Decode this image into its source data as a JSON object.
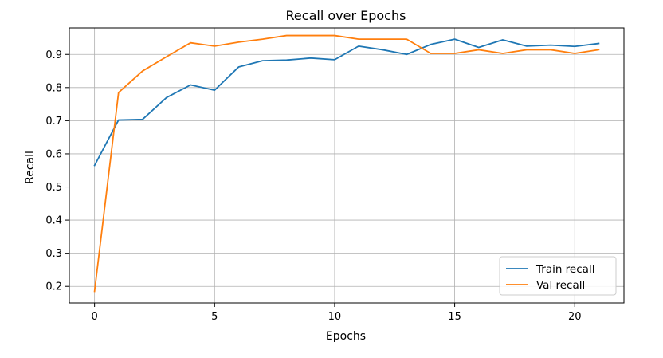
{
  "chart_data": {
    "type": "line",
    "title": "Recall over Epochs",
    "xlabel": "Epochs",
    "ylabel": "Recall",
    "xlim": [
      -1.05,
      22.05
    ],
    "ylim": [
      0.15,
      0.98
    ],
    "xticks": [
      0,
      5,
      10,
      15,
      20
    ],
    "yticks": [
      0.2,
      0.3,
      0.4,
      0.5,
      0.6,
      0.7,
      0.8,
      0.9
    ],
    "grid": true,
    "legend_position": "lower-right",
    "x": [
      0,
      1,
      2,
      3,
      4,
      5,
      6,
      7,
      8,
      9,
      10,
      11,
      12,
      13,
      14,
      15,
      16,
      17,
      18,
      19,
      20,
      21
    ],
    "series": [
      {
        "name": "Train recall",
        "color": "#1f77b4",
        "values": [
          0.565,
          0.702,
          0.704,
          0.77,
          0.808,
          0.792,
          0.862,
          0.881,
          0.883,
          0.889,
          0.884,
          0.925,
          0.914,
          0.9,
          0.93,
          0.946,
          0.921,
          0.944,
          0.925,
          0.928,
          0.924,
          0.933
        ]
      },
      {
        "name": "Val recall",
        "color": "#ff7f0e",
        "values": [
          0.185,
          0.785,
          0.85,
          0.893,
          0.935,
          0.925,
          0.937,
          0.946,
          0.957,
          0.957,
          0.957,
          0.946,
          0.946,
          0.946,
          0.903,
          0.903,
          0.914,
          0.903,
          0.914,
          0.914,
          0.903,
          0.914
        ]
      }
    ]
  }
}
